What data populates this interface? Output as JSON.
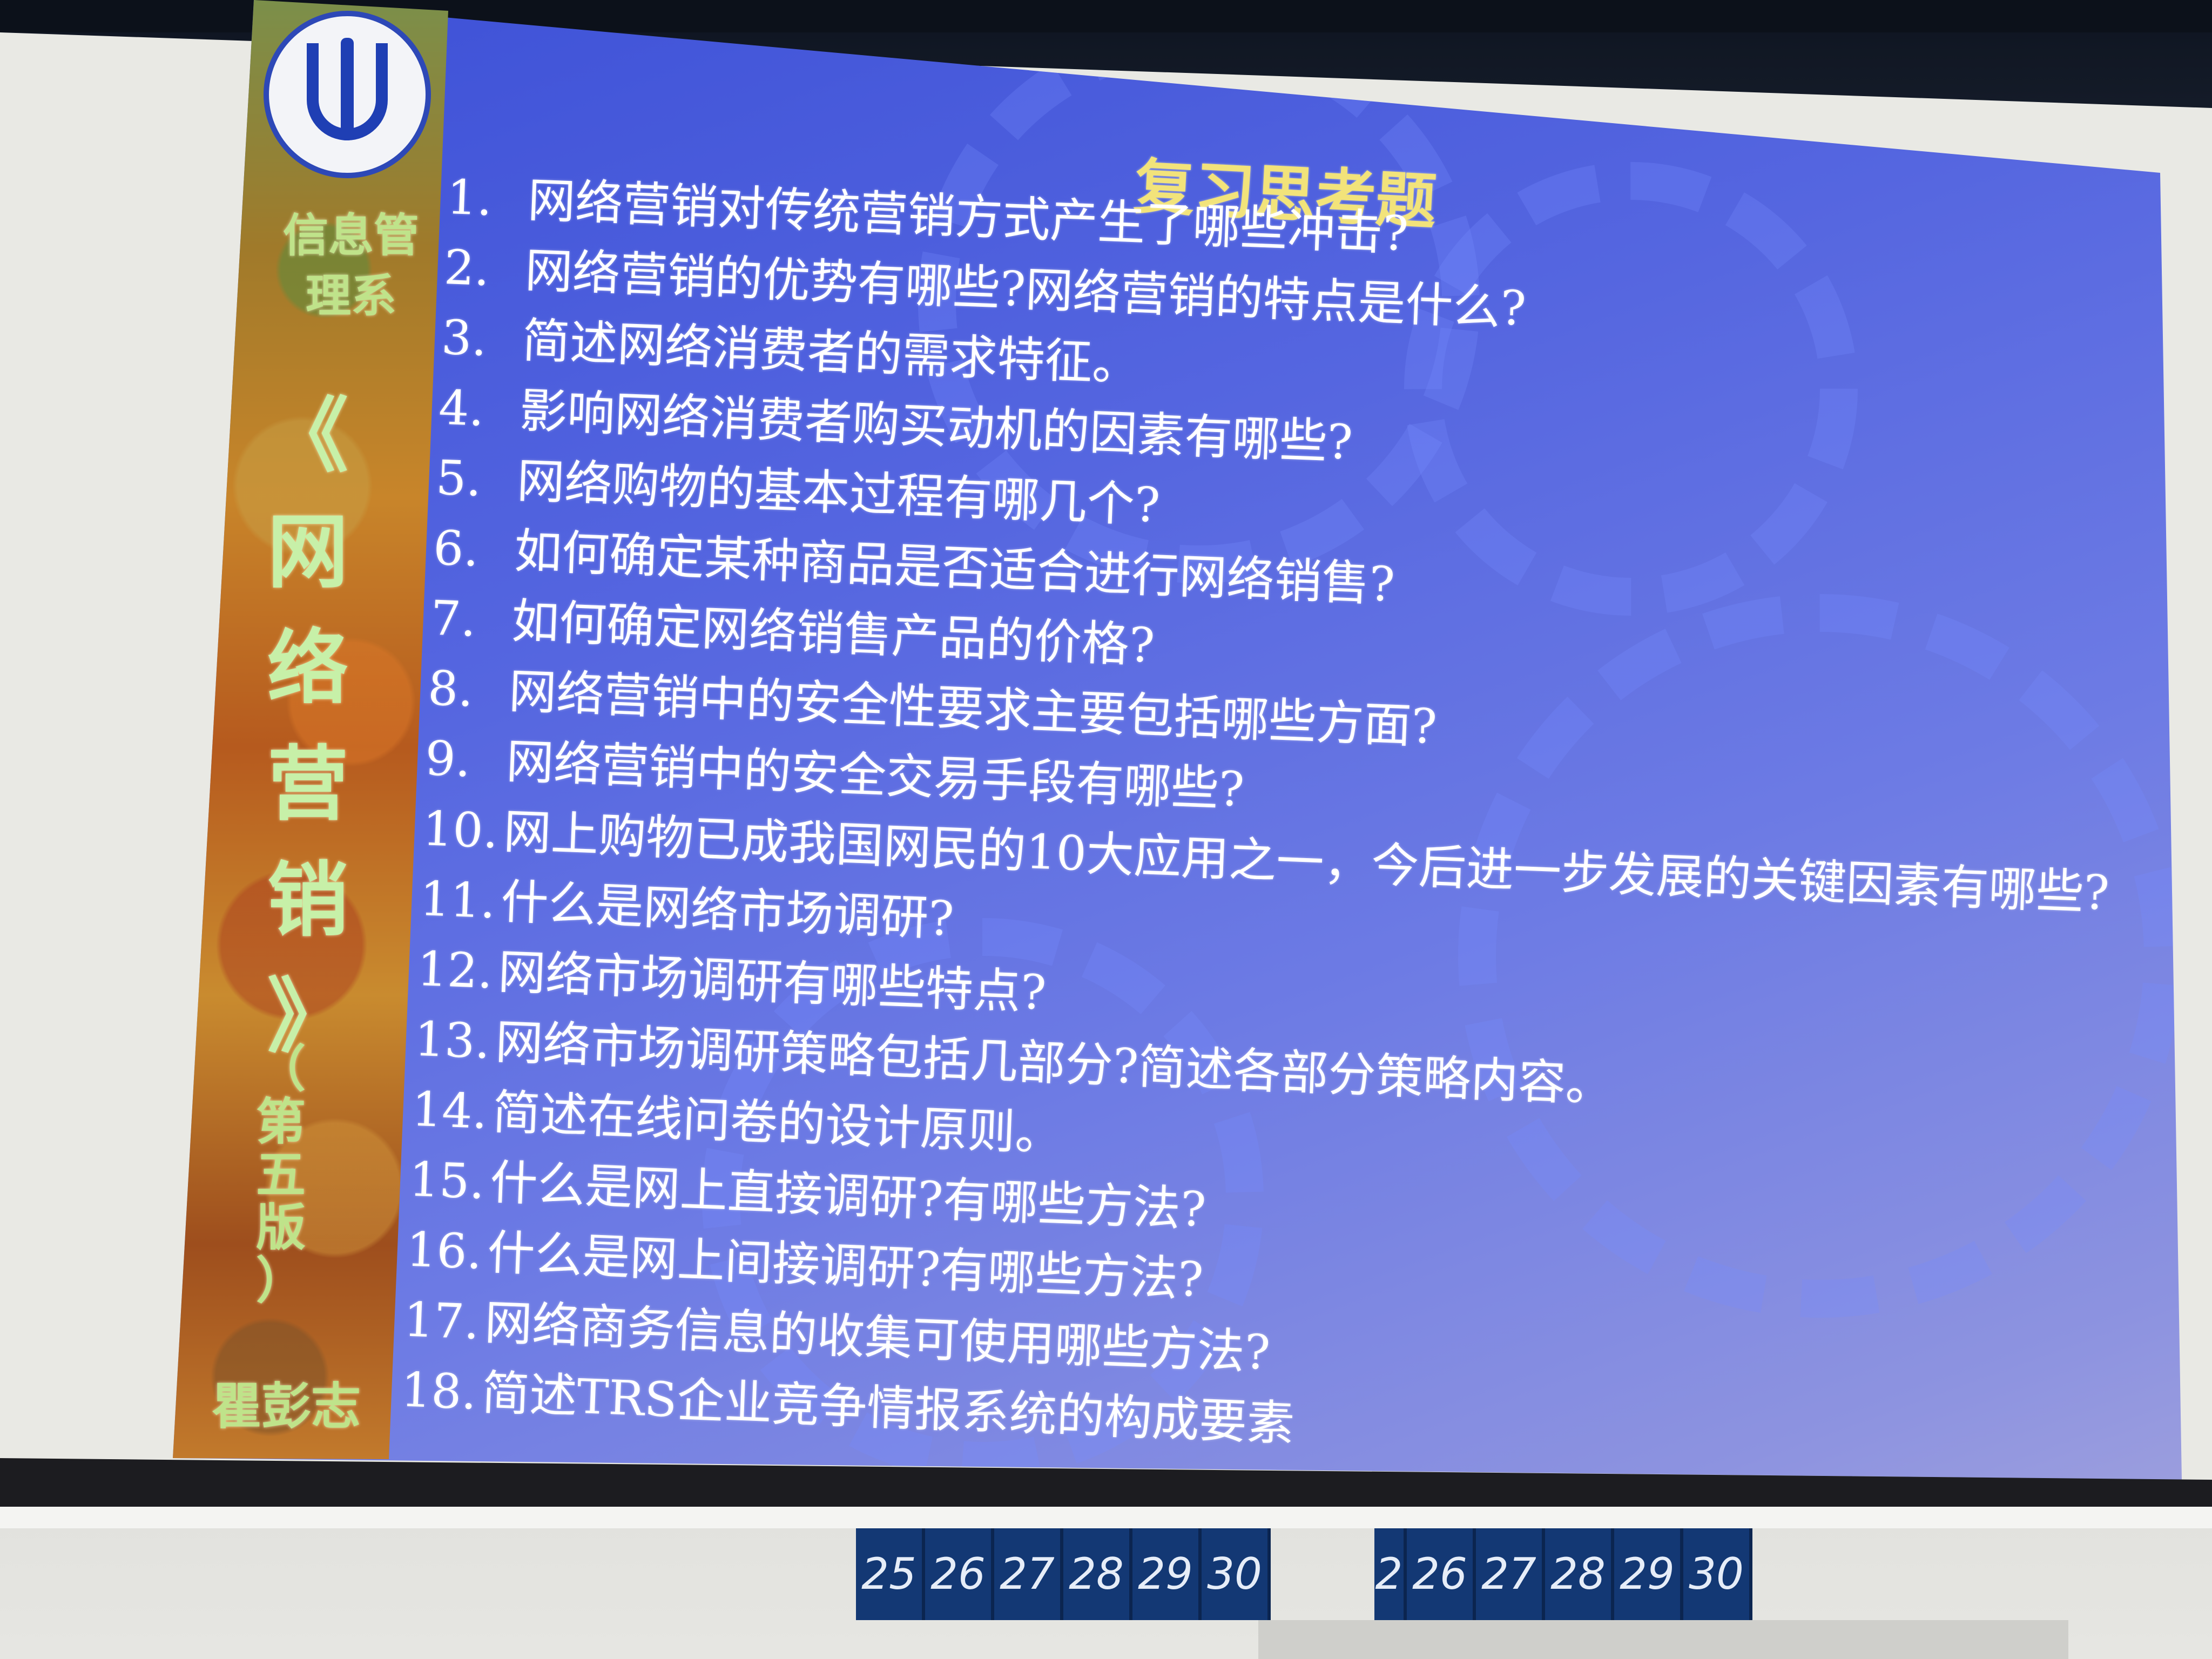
{
  "sidebar": {
    "department": "信息管理系",
    "book_title_chars": [
      "《",
      "网",
      "络",
      "营",
      "销",
      "》"
    ],
    "edition_chars": [
      "（",
      "第",
      "五",
      "版",
      "）"
    ],
    "author": "瞿彭志"
  },
  "slide": {
    "heading": "复习思考题",
    "questions": [
      {
        "num": "1.",
        "text": "网络营销对传统营销方式产生了哪些冲击?"
      },
      {
        "num": "2.",
        "text": "网络营销的优势有哪些?网络营销的特点是什么?"
      },
      {
        "num": "3.",
        "text": "简述网络消费者的需求特征。"
      },
      {
        "num": "4.",
        "text": "影响网络消费者购买动机的因素有哪些?"
      },
      {
        "num": "5.",
        "text": "网络购物的基本过程有哪几个?"
      },
      {
        "num": "6.",
        "text": "如何确定某种商品是否适合进行网络销售?"
      },
      {
        "num": "7.",
        "text": "如何确定网络销售产品的价格?"
      },
      {
        "num": "8.",
        "text": "网络营销中的安全性要求主要包括哪些方面?"
      },
      {
        "num": "9.",
        "text": "网络营销中的安全交易手段有哪些?"
      },
      {
        "num": "10.",
        "text": "网上购物已成我国网民的10大应用之一，今后进一步发展的关键因素有哪些?"
      },
      {
        "num": "11.",
        "text": "什么是网络市场调研?"
      },
      {
        "num": "12.",
        "text": "网络市场调研有哪些特点?"
      },
      {
        "num": "13.",
        "text": "网络市场调研策略包括几部分?简述各部分策略内容。"
      },
      {
        "num": "14.",
        "text": "简述在线问卷的设计原则。"
      },
      {
        "num": "15.",
        "text": "什么是网上直接调研?有哪些方法?"
      },
      {
        "num": "16.",
        "text": "什么是网上间接调研?有哪些方法?"
      },
      {
        "num": "17.",
        "text": "网络商务信息的收集可使用哪些方法?"
      },
      {
        "num": "18.",
        "text": "简述TRS企业竞争情报系统的构成要素"
      }
    ]
  },
  "tags_left": [
    "25",
    "26",
    "27",
    "28",
    "29",
    "30"
  ],
  "tags_right": [
    "2",
    "26",
    "27",
    "28",
    "29",
    "30"
  ]
}
